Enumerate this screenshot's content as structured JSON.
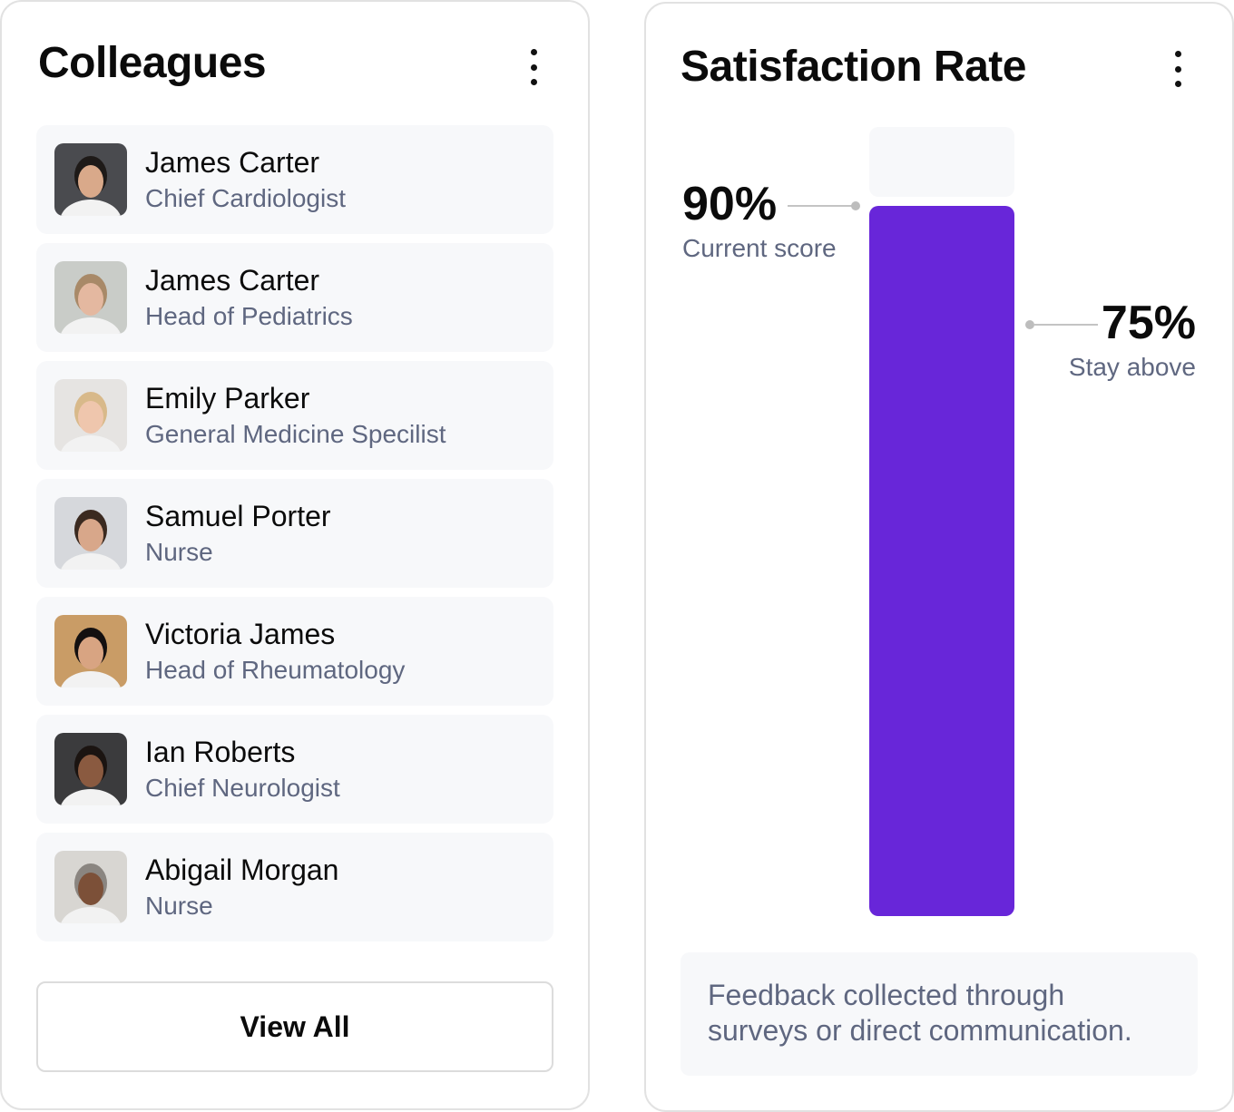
{
  "colleagues": {
    "title": "Colleagues",
    "menu_icon": "kebab-menu-icon",
    "items": [
      {
        "name": "James Carter",
        "role": "Chief Cardiologist",
        "bg": "#4a4b4f",
        "skin": "#d9a98a",
        "hair": "#1e1a18"
      },
      {
        "name": "James Carter",
        "role": "Head of Pediatrics",
        "bg": "#c9ccc8",
        "skin": "#e4b8a0",
        "hair": "#a88968"
      },
      {
        "name": "Emily Parker",
        "role": "General Medicine Specilist",
        "bg": "#e6e4e2",
        "skin": "#efc6ad",
        "hair": "#d8b98a"
      },
      {
        "name": "Samuel Porter",
        "role": "Nurse",
        "bg": "#d6d8dc",
        "skin": "#d8a78a",
        "hair": "#3b2a20"
      },
      {
        "name": "Victoria James",
        "role": "Head of Rheumatology",
        "bg": "#c99c66",
        "skin": "#d8a482",
        "hair": "#141010"
      },
      {
        "name": "Ian Roberts",
        "role": "Chief Neurologist",
        "bg": "#3b3b3d",
        "skin": "#8a5a40",
        "hair": "#1b1411"
      },
      {
        "name": "Abigail Morgan",
        "role": "Nurse",
        "bg": "#d8d6d2",
        "skin": "#7c5038",
        "hair": "#8a8580"
      }
    ],
    "view_all_label": "View All"
  },
  "satisfaction": {
    "title": "Satisfaction Rate",
    "menu_icon": "kebab-menu-icon",
    "current_value": "90%",
    "current_label": "Current score",
    "target_value": "75%",
    "target_label": "Stay above",
    "current_fraction": 0.9,
    "target_fraction": 0.75,
    "bar_color": "#6826d9",
    "track_color": "#f7f8fa",
    "note": "Feedback collected through surveys or direct communication."
  }
}
